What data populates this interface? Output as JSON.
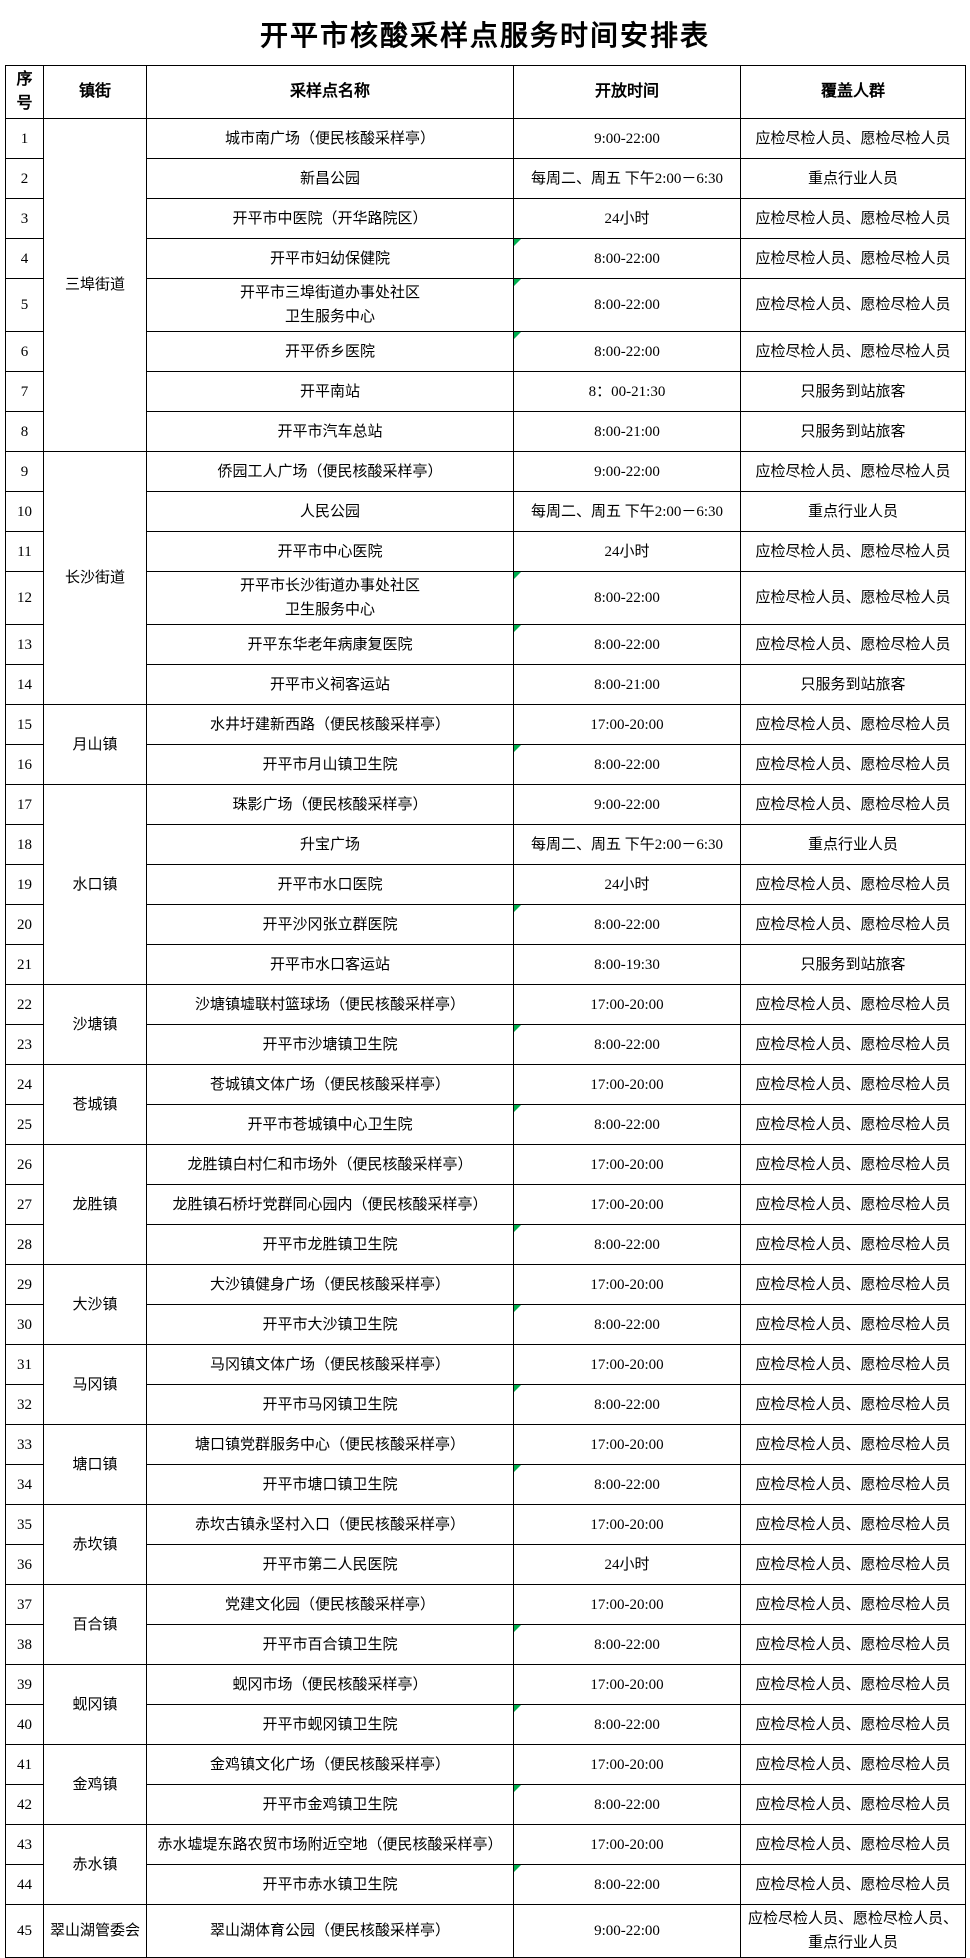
{
  "title": "开平市核酸采样点服务时间安排表",
  "colors": {
    "marker": "#00B050",
    "border": "#000000",
    "background": "#ffffff"
  },
  "headers": {
    "no": "序号",
    "town": "镇街",
    "site": "采样点名称",
    "hours": "开放时间",
    "coverage": "覆盖人群"
  },
  "groups": [
    {
      "town": "三埠街道",
      "rows": [
        {
          "no": "1",
          "site": "城市南广场（便民核酸采样亭）",
          "hours": "9:00-22:00",
          "coverage": "应检尽检人员、愿检尽检人员",
          "marker": false
        },
        {
          "no": "2",
          "site": "新昌公园",
          "hours": "每周二、周五 下午2:00－6:30",
          "coverage": "重点行业人员",
          "marker": false
        },
        {
          "no": "3",
          "site": "开平市中医院（开华路院区）",
          "hours": "24小时",
          "coverage": "应检尽检人员、愿检尽检人员",
          "marker": false
        },
        {
          "no": "4",
          "site": "开平市妇幼保健院",
          "hours": "8:00-22:00",
          "coverage": "应检尽检人员、愿检尽检人员",
          "marker": true
        },
        {
          "no": "5",
          "site": "开平市三埠街道办事处社区\n卫生服务中心",
          "hours": "8:00-22:00",
          "coverage": "应检尽检人员、愿检尽检人员",
          "marker": true
        },
        {
          "no": "6",
          "site": "开平侨乡医院",
          "hours": "8:00-22:00",
          "coverage": "应检尽检人员、愿检尽检人员",
          "marker": true
        },
        {
          "no": "7",
          "site": "开平南站",
          "hours": "8：00-21:30",
          "coverage": "只服务到站旅客",
          "marker": false
        },
        {
          "no": "8",
          "site": "开平市汽车总站",
          "hours": "8:00-21:00",
          "coverage": "只服务到站旅客",
          "marker": false
        }
      ]
    },
    {
      "town": "长沙街道",
      "rows": [
        {
          "no": "9",
          "site": "侨园工人广场（便民核酸采样亭）",
          "hours": "9:00-22:00",
          "coverage": "应检尽检人员、愿检尽检人员",
          "marker": false
        },
        {
          "no": "10",
          "site": "人民公园",
          "hours": "每周二、周五 下午2:00－6:30",
          "coverage": "重点行业人员",
          "marker": false
        },
        {
          "no": "11",
          "site": "开平市中心医院",
          "hours": "24小时",
          "coverage": "应检尽检人员、愿检尽检人员",
          "marker": false
        },
        {
          "no": "12",
          "site": "开平市长沙街道办事处社区\n卫生服务中心",
          "hours": "8:00-22:00",
          "coverage": "应检尽检人员、愿检尽检人员",
          "marker": true
        },
        {
          "no": "13",
          "site": "开平东华老年病康复医院",
          "hours": "8:00-22:00",
          "coverage": "应检尽检人员、愿检尽检人员",
          "marker": true
        },
        {
          "no": "14",
          "site": "开平市义祠客运站",
          "hours": "8:00-21:00",
          "coverage": "只服务到站旅客",
          "marker": false
        }
      ]
    },
    {
      "town": "月山镇",
      "rows": [
        {
          "no": "15",
          "site": "水井圩建新西路（便民核酸采样亭）",
          "hours": "17:00-20:00",
          "coverage": "应检尽检人员、愿检尽检人员",
          "marker": false
        },
        {
          "no": "16",
          "site": "开平市月山镇卫生院",
          "hours": "8:00-22:00",
          "coverage": "应检尽检人员、愿检尽检人员",
          "marker": true
        }
      ]
    },
    {
      "town": "水口镇",
      "rows": [
        {
          "no": "17",
          "site": "珠影广场（便民核酸采样亭）",
          "hours": "9:00-22:00",
          "coverage": "应检尽检人员、愿检尽检人员",
          "marker": false
        },
        {
          "no": "18",
          "site": "升宝广场",
          "hours": "每周二、周五 下午2:00－6:30",
          "coverage": "重点行业人员",
          "marker": false
        },
        {
          "no": "19",
          "site": "开平市水口医院",
          "hours": "24小时",
          "coverage": "应检尽检人员、愿检尽检人员",
          "marker": false
        },
        {
          "no": "20",
          "site": "开平沙冈张立群医院",
          "hours": "8:00-22:00",
          "coverage": "应检尽检人员、愿检尽检人员",
          "marker": true
        },
        {
          "no": "21",
          "site": "开平市水口客运站",
          "hours": "8:00-19:30",
          "coverage": "只服务到站旅客",
          "marker": false
        }
      ]
    },
    {
      "town": "沙塘镇",
      "rows": [
        {
          "no": "22",
          "site": "沙塘镇墟联村篮球场（便民核酸采样亭）",
          "hours": "17:00-20:00",
          "coverage": "应检尽检人员、愿检尽检人员",
          "marker": false
        },
        {
          "no": "23",
          "site": "开平市沙塘镇卫生院",
          "hours": "8:00-22:00",
          "coverage": "应检尽检人员、愿检尽检人员",
          "marker": true
        }
      ]
    },
    {
      "town": "苍城镇",
      "rows": [
        {
          "no": "24",
          "site": "苍城镇文体广场（便民核酸采样亭）",
          "hours": "17:00-20:00",
          "coverage": "应检尽检人员、愿检尽检人员",
          "marker": false
        },
        {
          "no": "25",
          "site": "开平市苍城镇中心卫生院",
          "hours": "8:00-22:00",
          "coverage": "应检尽检人员、愿检尽检人员",
          "marker": true
        }
      ]
    },
    {
      "town": "龙胜镇",
      "rows": [
        {
          "no": "26",
          "site": "龙胜镇白村仁和市场外（便民核酸采样亭）",
          "hours": "17:00-20:00",
          "coverage": "应检尽检人员、愿检尽检人员",
          "marker": false
        },
        {
          "no": "27",
          "site": "龙胜镇石桥圩党群同心园内（便民核酸采样亭）",
          "hours": "17:00-20:00",
          "coverage": "应检尽检人员、愿检尽检人员",
          "marker": false
        },
        {
          "no": "28",
          "site": "开平市龙胜镇卫生院",
          "hours": "8:00-22:00",
          "coverage": "应检尽检人员、愿检尽检人员",
          "marker": true
        }
      ]
    },
    {
      "town": "大沙镇",
      "rows": [
        {
          "no": "29",
          "site": "大沙镇健身广场（便民核酸采样亭）",
          "hours": "17:00-20:00",
          "coverage": "应检尽检人员、愿检尽检人员",
          "marker": false
        },
        {
          "no": "30",
          "site": "开平市大沙镇卫生院",
          "hours": "8:00-22:00",
          "coverage": "应检尽检人员、愿检尽检人员",
          "marker": true
        }
      ]
    },
    {
      "town": "马冈镇",
      "rows": [
        {
          "no": "31",
          "site": "马冈镇文体广场（便民核酸采样亭）",
          "hours": "17:00-20:00",
          "coverage": "应检尽检人员、愿检尽检人员",
          "marker": false
        },
        {
          "no": "32",
          "site": "开平市马冈镇卫生院",
          "hours": "8:00-22:00",
          "coverage": "应检尽检人员、愿检尽检人员",
          "marker": true
        }
      ]
    },
    {
      "town": "塘口镇",
      "rows": [
        {
          "no": "33",
          "site": "塘口镇党群服务中心（便民核酸采样亭）",
          "hours": "17:00-20:00",
          "coverage": "应检尽检人员、愿检尽检人员",
          "marker": false
        },
        {
          "no": "34",
          "site": "开平市塘口镇卫生院",
          "hours": "8:00-22:00",
          "coverage": "应检尽检人员、愿检尽检人员",
          "marker": true
        }
      ]
    },
    {
      "town": "赤坎镇",
      "rows": [
        {
          "no": "35",
          "site": "赤坎古镇永坚村入口（便民核酸采样亭）",
          "hours": "17:00-20:00",
          "coverage": "应检尽检人员、愿检尽检人员",
          "marker": false
        },
        {
          "no": "36",
          "site": "开平市第二人民医院",
          "hours": "24小时",
          "coverage": "应检尽检人员、愿检尽检人员",
          "marker": false
        }
      ]
    },
    {
      "town": "百合镇",
      "rows": [
        {
          "no": "37",
          "site": "党建文化园（便民核酸采样亭）",
          "hours": "17:00-20:00",
          "coverage": "应检尽检人员、愿检尽检人员",
          "marker": false
        },
        {
          "no": "38",
          "site": "开平市百合镇卫生院",
          "hours": "8:00-22:00",
          "coverage": "应检尽检人员、愿检尽检人员",
          "marker": true
        }
      ]
    },
    {
      "town": "蚬冈镇",
      "rows": [
        {
          "no": "39",
          "site": "蚬冈市场（便民核酸采样亭）",
          "hours": "17:00-20:00",
          "coverage": "应检尽检人员、愿检尽检人员",
          "marker": false
        },
        {
          "no": "40",
          "site": "开平市蚬冈镇卫生院",
          "hours": "8:00-22:00",
          "coverage": "应检尽检人员、愿检尽检人员",
          "marker": true
        }
      ]
    },
    {
      "town": "金鸡镇",
      "rows": [
        {
          "no": "41",
          "site": "金鸡镇文化广场（便民核酸采样亭）",
          "hours": "17:00-20:00",
          "coverage": "应检尽检人员、愿检尽检人员",
          "marker": false
        },
        {
          "no": "42",
          "site": "开平市金鸡镇卫生院",
          "hours": "8:00-22:00",
          "coverage": "应检尽检人员、愿检尽检人员",
          "marker": true
        }
      ]
    },
    {
      "town": "赤水镇",
      "rows": [
        {
          "no": "43",
          "site": "赤水墟堤东路农贸市场附近空地（便民核酸采样亭）",
          "hours": "17:00-20:00",
          "coverage": "应检尽检人员、愿检尽检人员",
          "marker": false
        },
        {
          "no": "44",
          "site": "开平市赤水镇卫生院",
          "hours": "8:00-22:00",
          "coverage": "应检尽检人员、愿检尽检人员",
          "marker": true
        }
      ]
    },
    {
      "town": "翠山湖管委会",
      "rows": [
        {
          "no": "45",
          "site": "翠山湖体育公园（便民核酸采样亭）",
          "hours": "9:00-22:00",
          "coverage": "应检尽检人员、愿检尽检人员、重点行业人员",
          "marker": false
        }
      ]
    }
  ]
}
